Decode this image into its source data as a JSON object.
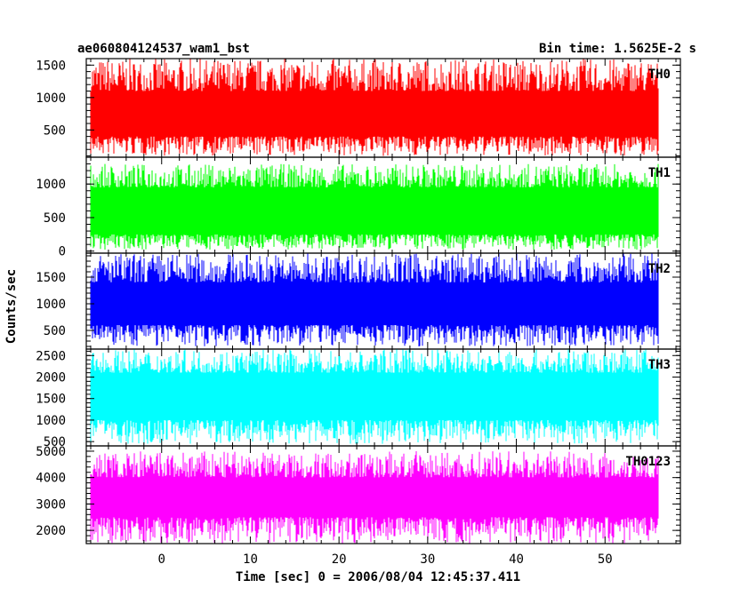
{
  "chart_data": {
    "type": "line",
    "title": "ae060804124537_wam1_bst",
    "subtitle": "Bin time: 1.5625E-2 s",
    "xlabel": "Time [sec] 0 = 2006/08/04 12:45:37.411",
    "ylabel": "Counts/sec",
    "xlim": [
      -8.5,
      58.5
    ],
    "x_ticks": [
      0,
      10,
      20,
      30,
      40,
      50
    ],
    "x_tick_labels": [
      "0",
      "10",
      "20",
      "30",
      "40",
      "50"
    ],
    "data_range_x": [
      -8,
      56
    ],
    "grid": false,
    "legend": "none",
    "panels": [
      {
        "name": "TH0",
        "color": "#ff0000",
        "ylim": [
          80,
          1600
        ],
        "y_ticks": [
          500,
          1000,
          1500
        ],
        "y_tick_labels": [
          "500",
          "1000",
          "1500"
        ],
        "mean": 750,
        "band": [
          400,
          1100
        ],
        "spike_range": [
          100,
          1600
        ]
      },
      {
        "name": "TH1",
        "color": "#00ff00",
        "ylim": [
          -30,
          1400
        ],
        "y_ticks": [
          0,
          500,
          1000
        ],
        "y_tick_labels": [
          "0",
          "500",
          "1000"
        ],
        "mean": 620,
        "band": [
          250,
          950
        ],
        "spike_range": [
          20,
          1300
        ]
      },
      {
        "name": "TH2",
        "color": "#0000ff",
        "ylim": [
          150,
          1950
        ],
        "y_ticks": [
          500,
          1000,
          1500
        ],
        "y_tick_labels": [
          "500",
          "1000",
          "1500"
        ],
        "mean": 1000,
        "band": [
          600,
          1400
        ],
        "spike_range": [
          200,
          1950
        ]
      },
      {
        "name": "TH3",
        "color": "#00ffff",
        "ylim": [
          400,
          2650
        ],
        "y_ticks": [
          500,
          1000,
          1500,
          2000,
          2500
        ],
        "y_tick_labels": [
          "500",
          "1000",
          "1500",
          "2000",
          "2500"
        ],
        "mean": 1550,
        "band": [
          1000,
          2100
        ],
        "spike_range": [
          450,
          2650
        ]
      },
      {
        "name": "TH0123",
        "color": "#ff00ff",
        "ylim": [
          1500,
          5200
        ],
        "y_ticks": [
          2000,
          3000,
          4000,
          5000
        ],
        "y_tick_labels": [
          "2000",
          "3000",
          "4000",
          "5000"
        ],
        "mean": 3250,
        "band": [
          2500,
          4000
        ],
        "spike_range": [
          1500,
          5000
        ]
      }
    ]
  }
}
